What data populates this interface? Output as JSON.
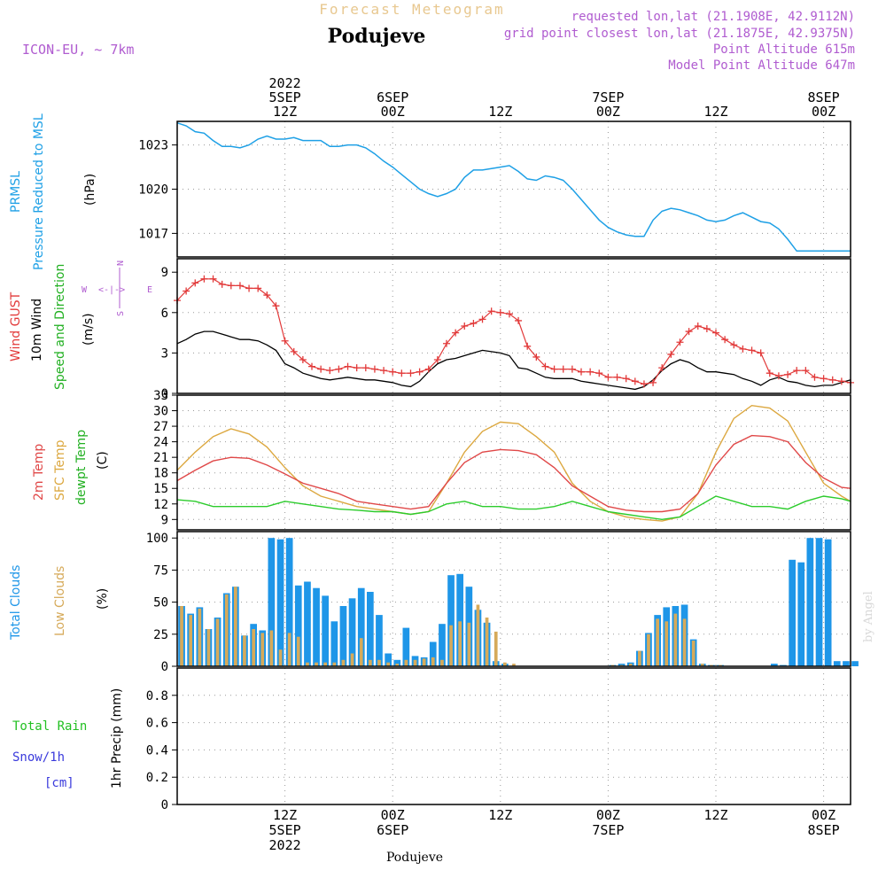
{
  "header": {
    "title": "Forecast Meteogram",
    "location": "Podujeve",
    "model": "ICON-EU, ~ 7km",
    "requested": "requested lon,lat (21.1908E, 42.9112N)",
    "grid_point": "grid point closest lon,lat (21.1875E, 42.9375N)",
    "point_altitude": "Point Altitude 615m",
    "model_altitude": "Model Point Altitude 647m",
    "watermark": "by Angel",
    "footer_location": "Podujeve"
  },
  "time_axis": {
    "top_labels": [
      {
        "t": 12,
        "lines": [
          "2022",
          "5SEP",
          "12Z"
        ]
      },
      {
        "t": 24,
        "lines": [
          "6SEP",
          "00Z"
        ]
      },
      {
        "t": 36,
        "lines": [
          "12Z"
        ]
      },
      {
        "t": 48,
        "lines": [
          "7SEP",
          "00Z"
        ]
      },
      {
        "t": 60,
        "lines": [
          "12Z"
        ]
      },
      {
        "t": 72,
        "lines": [
          "8SEP",
          "00Z"
        ]
      }
    ],
    "bottom_labels": [
      {
        "t": 12,
        "lines": [
          "12Z",
          "5SEP",
          "2022"
        ]
      },
      {
        "t": 24,
        "lines": [
          "00Z",
          "6SEP"
        ]
      },
      {
        "t": 36,
        "lines": [
          "12Z"
        ]
      },
      {
        "t": 48,
        "lines": [
          "00Z",
          "7SEP"
        ]
      },
      {
        "t": 60,
        "lines": [
          "12Z"
        ]
      },
      {
        "t": 72,
        "lines": [
          "00Z",
          "8SEP"
        ]
      }
    ]
  },
  "panels": {
    "pressure": {
      "label1": "PRMSL",
      "label2": "Pressure Reduced to MSL",
      "unit": "(hPa)"
    },
    "wind": {
      "gust_label": "Wind GUST",
      "wind_label": "10m Wind",
      "speed_label": "Speed and Direction",
      "unit": "(m/s)",
      "compass": {
        "n": "N",
        "s": "S",
        "w": "W",
        "e": "E",
        "arrows": "<-|->"
      }
    },
    "temp": {
      "t2m_label": "2m Temp",
      "sfc_label": "SFC Temp",
      "dew_label": "dewpt Temp",
      "unit": "(C)"
    },
    "clouds": {
      "total_label": "Total Clouds",
      "low_label": "Low Clouds",
      "unit": "(%)"
    },
    "precip": {
      "rain_label": "Total  Rain",
      "snow_label": "Snow/1h",
      "snow_unit": "[cm]",
      "axis_label": "1hr Precip (mm)"
    }
  },
  "colors": {
    "pressure": "#1ea0e6",
    "gust": "#e23a3a",
    "wind": "#000000",
    "t2m": "#e04848",
    "sfc": "#dca840",
    "dew": "#2ccc2c",
    "total_cloud": "#1e96e8",
    "low_cloud": "#d6aa5a",
    "rain": "#22c022",
    "snow": "#3a3adc",
    "label_purple": "#b05cd0",
    "title_gold": "#e8c890"
  },
  "chart_data": [
    {
      "type": "line",
      "name": "pressure",
      "ylabel": "(hPa)",
      "ylim": [
        1015.4,
        1024.6
      ],
      "yticks": [
        1017,
        1020,
        1023
      ],
      "xlim": [
        0,
        75
      ],
      "series": [
        {
          "name": "PRMSL",
          "x": [
            0,
            1,
            2,
            3,
            4,
            5,
            6,
            7,
            8,
            9,
            10,
            11,
            12,
            13,
            14,
            15,
            16,
            17,
            18,
            19,
            20,
            21,
            22,
            23,
            24,
            25,
            26,
            27,
            28,
            29,
            30,
            31,
            32,
            33,
            34,
            35,
            36,
            37,
            38,
            39,
            40,
            41,
            42,
            43,
            44,
            45,
            46,
            47,
            48,
            49,
            50,
            51,
            52,
            53,
            54,
            55,
            56,
            57,
            58,
            59,
            60,
            61,
            62,
            63,
            64,
            65,
            66,
            67,
            68,
            69,
            70,
            71,
            72,
            73,
            74,
            75
          ],
          "values": [
            1024.5,
            1024.3,
            1023.9,
            1023.8,
            1023.3,
            1022.9,
            1022.9,
            1022.8,
            1023.0,
            1023.4,
            1023.6,
            1023.4,
            1023.4,
            1023.5,
            1023.3,
            1023.3,
            1023.3,
            1022.9,
            1022.9,
            1023.0,
            1023.0,
            1022.8,
            1022.4,
            1021.9,
            1021.5,
            1021.0,
            1020.5,
            1020.0,
            1019.7,
            1019.5,
            1019.7,
            1020.0,
            1020.8,
            1021.3,
            1021.3,
            1021.4,
            1021.5,
            1021.6,
            1021.2,
            1020.7,
            1020.6,
            1020.9,
            1020.8,
            1020.6,
            1020.0,
            1019.3,
            1018.6,
            1017.9,
            1017.4,
            1017.1,
            1016.9,
            1016.8,
            1016.8,
            1017.9,
            1018.5,
            1018.7,
            1018.6,
            1018.4,
            1018.2,
            1017.9,
            1017.8,
            1017.9,
            1018.2,
            1018.4,
            1018.1,
            1017.8,
            1017.7,
            1017.3,
            1016.6,
            1015.8,
            1015.8,
            1015.8,
            1015.8,
            1015.8,
            1015.8,
            1015.8
          ]
        }
      ]
    },
    {
      "type": "line",
      "name": "wind",
      "ylabel": "(m/s)",
      "ylim": [
        0,
        10
      ],
      "yticks": [
        0,
        3,
        6,
        9
      ],
      "xlim": [
        0,
        75
      ],
      "series": [
        {
          "name": "Wind GUST",
          "x": [
            0,
            1,
            2,
            3,
            4,
            5,
            6,
            7,
            8,
            9,
            10,
            11,
            12,
            13,
            14,
            15,
            16,
            17,
            18,
            19,
            20,
            21,
            22,
            23,
            24,
            25,
            26,
            27,
            28,
            29,
            30,
            31,
            32,
            33,
            34,
            35,
            36,
            37,
            38,
            39,
            40,
            41,
            42,
            43,
            44,
            45,
            46,
            47,
            48,
            49,
            50,
            51,
            52,
            53,
            54,
            55,
            56,
            57,
            58,
            59,
            60,
            61,
            62,
            63,
            64,
            65,
            66,
            67,
            68,
            69,
            70,
            71,
            72,
            73,
            74,
            75
          ],
          "values": [
            6.9,
            7.6,
            8.2,
            8.5,
            8.5,
            8.1,
            8.0,
            8.0,
            7.8,
            7.8,
            7.3,
            6.5,
            3.9,
            3.1,
            2.5,
            2.0,
            1.8,
            1.7,
            1.8,
            2.0,
            1.9,
            1.9,
            1.8,
            1.7,
            1.6,
            1.5,
            1.5,
            1.6,
            1.8,
            2.5,
            3.7,
            4.5,
            5.0,
            5.2,
            5.5,
            6.1,
            6.0,
            5.9,
            5.4,
            3.5,
            2.7,
            2.0,
            1.8,
            1.8,
            1.8,
            1.6,
            1.6,
            1.5,
            1.2,
            1.2,
            1.1,
            0.9,
            0.7,
            0.8,
            1.9,
            2.9,
            3.8,
            4.6,
            5.0,
            4.8,
            4.5,
            4.0,
            3.6,
            3.3,
            3.2,
            3.0,
            1.5,
            1.3,
            1.4,
            1.7,
            1.7,
            1.2,
            1.1,
            1.0,
            0.9,
            0.8
          ]
        },
        {
          "name": "10m Wind",
          "x": [
            0,
            1,
            2,
            3,
            4,
            5,
            6,
            7,
            8,
            9,
            10,
            11,
            12,
            13,
            14,
            15,
            16,
            17,
            18,
            19,
            20,
            21,
            22,
            23,
            24,
            25,
            26,
            27,
            28,
            29,
            30,
            31,
            32,
            33,
            34,
            35,
            36,
            37,
            38,
            39,
            40,
            41,
            42,
            43,
            44,
            45,
            46,
            47,
            48,
            49,
            50,
            51,
            52,
            53,
            54,
            55,
            56,
            57,
            58,
            59,
            60,
            61,
            62,
            63,
            64,
            65,
            66,
            67,
            68,
            69,
            70,
            71,
            72,
            73,
            74,
            75
          ],
          "values": [
            3.7,
            4.0,
            4.4,
            4.6,
            4.6,
            4.4,
            4.2,
            4.0,
            4.0,
            3.9,
            3.6,
            3.2,
            2.2,
            1.9,
            1.5,
            1.3,
            1.1,
            1.0,
            1.1,
            1.2,
            1.1,
            1.0,
            1.0,
            0.9,
            0.8,
            0.6,
            0.5,
            0.9,
            1.6,
            2.2,
            2.5,
            2.6,
            2.8,
            3.0,
            3.2,
            3.1,
            3.0,
            2.8,
            1.9,
            1.8,
            1.5,
            1.2,
            1.1,
            1.1,
            1.1,
            0.9,
            0.8,
            0.7,
            0.6,
            0.5,
            0.4,
            0.3,
            0.5,
            1.0,
            1.7,
            2.2,
            2.5,
            2.3,
            1.9,
            1.6,
            1.6,
            1.5,
            1.4,
            1.1,
            0.9,
            0.6,
            1.0,
            1.2,
            0.9,
            0.8,
            0.6,
            0.5,
            0.6,
            0.6,
            0.8,
            1.0
          ]
        }
      ]
    },
    {
      "type": "line",
      "name": "temperature",
      "ylabel": "(C)",
      "ylim": [
        7,
        33
      ],
      "yticks": [
        9,
        12,
        15,
        18,
        21,
        24,
        27,
        30,
        33
      ],
      "xlim": [
        0,
        75
      ],
      "series": [
        {
          "name": "2m Temp",
          "x": [
            0,
            2,
            4,
            6,
            8,
            10,
            12,
            14,
            16,
            18,
            20,
            22,
            24,
            26,
            28,
            30,
            32,
            34,
            36,
            38,
            40,
            42,
            44,
            46,
            48,
            50,
            52,
            54,
            56,
            58,
            60,
            62,
            64,
            66,
            68,
            70,
            72,
            74,
            75
          ],
          "values": [
            16.5,
            18.5,
            20.3,
            21.0,
            20.8,
            19.5,
            17.8,
            16.0,
            15.0,
            14.0,
            12.5,
            12.0,
            11.5,
            11.0,
            11.5,
            16.0,
            20.0,
            22.0,
            22.5,
            22.3,
            21.5,
            19.0,
            15.5,
            13.5,
            11.5,
            10.8,
            10.5,
            10.5,
            11.0,
            14.0,
            19.5,
            23.5,
            25.2,
            25.0,
            24.0,
            20.0,
            17.0,
            15.2,
            15.0
          ]
        },
        {
          "name": "SFC Temp",
          "x": [
            0,
            2,
            4,
            6,
            8,
            10,
            12,
            14,
            16,
            18,
            20,
            22,
            24,
            26,
            28,
            30,
            32,
            34,
            36,
            38,
            40,
            42,
            44,
            46,
            48,
            50,
            52,
            54,
            56,
            58,
            60,
            62,
            64,
            66,
            68,
            70,
            72,
            74,
            75
          ],
          "values": [
            18.5,
            22.0,
            25.0,
            26.5,
            25.5,
            23.0,
            19.0,
            15.5,
            13.5,
            12.5,
            11.5,
            11.0,
            10.5,
            10.0,
            10.5,
            16.0,
            22.0,
            26.0,
            27.8,
            27.5,
            25.0,
            22.0,
            16.0,
            12.5,
            10.5,
            9.5,
            9.0,
            8.7,
            9.5,
            14.0,
            22.0,
            28.5,
            31.0,
            30.5,
            28.0,
            22.0,
            16.0,
            13.5,
            12.5
          ]
        },
        {
          "name": "dewpt Temp",
          "x": [
            0,
            2,
            4,
            6,
            8,
            10,
            12,
            14,
            16,
            18,
            20,
            22,
            24,
            26,
            28,
            30,
            32,
            34,
            36,
            38,
            40,
            42,
            44,
            46,
            48,
            50,
            52,
            54,
            56,
            58,
            60,
            62,
            64,
            66,
            68,
            70,
            72,
            74,
            75
          ],
          "values": [
            12.8,
            12.5,
            11.5,
            11.5,
            11.5,
            11.5,
            12.5,
            12.0,
            11.5,
            11.0,
            10.8,
            10.5,
            10.5,
            10.0,
            10.5,
            12.0,
            12.5,
            11.5,
            11.5,
            11.0,
            11.0,
            11.5,
            12.5,
            11.5,
            10.5,
            10.0,
            9.5,
            9.0,
            9.5,
            11.5,
            13.5,
            12.5,
            11.5,
            11.5,
            11.0,
            12.5,
            13.5,
            13.0,
            12.5
          ]
        }
      ]
    },
    {
      "type": "bar",
      "name": "clouds",
      "ylabel": "(%)",
      "ylim": [
        0,
        105
      ],
      "yticks": [
        0,
        25,
        50,
        75,
        100
      ],
      "xlim": [
        0,
        75
      ],
      "series": [
        {
          "name": "Total Clouds",
          "values": [
            47,
            41,
            46,
            29,
            38,
            57,
            62,
            24,
            33,
            28,
            100,
            99,
            100,
            63,
            66,
            61,
            55,
            35,
            47,
            53,
            61,
            58,
            40,
            10,
            5,
            30,
            8,
            7,
            19,
            33,
            71,
            72,
            62,
            44,
            34,
            4,
            2,
            0,
            0,
            0,
            0,
            0,
            0,
            0,
            0,
            0,
            0,
            0,
            1,
            2,
            3,
            12,
            26,
            40,
            46,
            47,
            48,
            21,
            2,
            1,
            1,
            0,
            0,
            0,
            0,
            0,
            2,
            1,
            83,
            81,
            100,
            100,
            99,
            4,
            4,
            4
          ]
        },
        {
          "name": "Low Clouds",
          "values": [
            47,
            40,
            45,
            29,
            37,
            56,
            62,
            24,
            29,
            26,
            28,
            13,
            26,
            23,
            3,
            3,
            3,
            3,
            5,
            10,
            22,
            5,
            5,
            3,
            2,
            5,
            5,
            6,
            7,
            5,
            32,
            35,
            34,
            48,
            38,
            27,
            3,
            2,
            0,
            0,
            0,
            0,
            0,
            0,
            0,
            0,
            0,
            0,
            1,
            1,
            2,
            12,
            25,
            37,
            35,
            41,
            37,
            20,
            2,
            1,
            1,
            0,
            0,
            0,
            0,
            0,
            0,
            0,
            0,
            0,
            0,
            0,
            0,
            0,
            0,
            0
          ]
        }
      ]
    },
    {
      "type": "bar",
      "name": "precipitation",
      "ylabel": "1hr Precip (mm)",
      "ylim": [
        0,
        1.0
      ],
      "yticks": [
        0,
        0.2,
        0.4,
        0.6,
        0.8
      ],
      "xlim": [
        0,
        75
      ],
      "series": [
        {
          "name": "Total Rain",
          "values": []
        },
        {
          "name": "Snow/1h",
          "values": []
        }
      ]
    }
  ]
}
